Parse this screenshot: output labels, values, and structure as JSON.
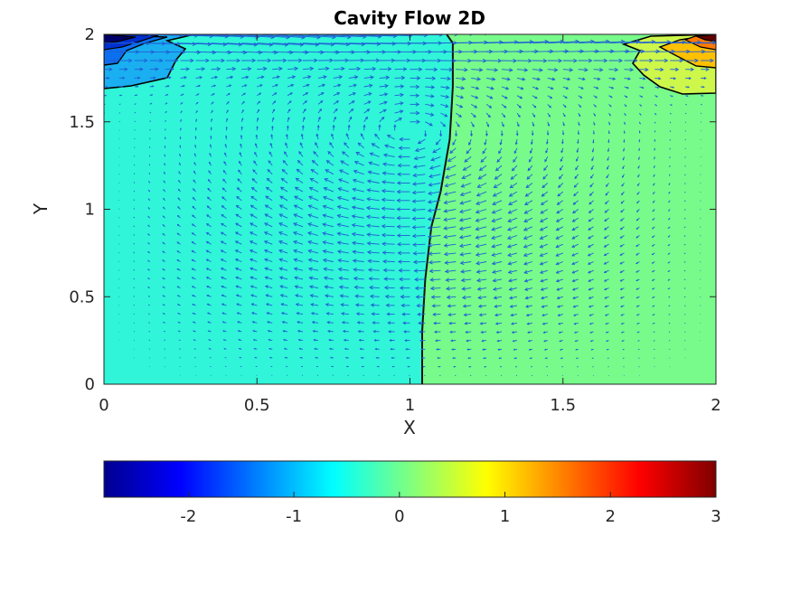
{
  "chart_data": {
    "type": "heatmap",
    "subtype": "filled contour with velocity quiver overlay",
    "title": "Cavity Flow 2D",
    "xlabel": "X",
    "ylabel": "Y",
    "xlim": [
      0,
      2
    ],
    "ylim": [
      0,
      2
    ],
    "x_ticks": [
      "0",
      "0.5",
      "1",
      "1.5",
      "2"
    ],
    "y_ticks": [
      "0",
      "0.5",
      "1",
      "1.5",
      "2"
    ],
    "x_tick_values": [
      0,
      0.5,
      1,
      1.5,
      2
    ],
    "y_tick_values": [
      0,
      0.5,
      1,
      1.5,
      2
    ],
    "grid": false,
    "colormap": "jet",
    "colorbar": {
      "placement": "bottom",
      "range": [
        -2.8,
        3.0
      ],
      "ticks": [
        "-2",
        "-1",
        "0",
        "1",
        "2",
        "3"
      ],
      "tick_values": [
        -2,
        -1,
        0,
        1,
        2,
        3
      ]
    },
    "pressure_regions": [
      {
        "region": "bulk left (x < ~1.05)",
        "value": -0.3,
        "color": "#30f5d8"
      },
      {
        "region": "bulk right (x > ~1.05)",
        "value": 0.3,
        "color": "#78fb8a"
      },
      {
        "region": "top-left corner",
        "value_range": [
          -2.8,
          -1.0
        ],
        "colors": [
          "#1aaff0",
          "#0060f0",
          "#00006a"
        ]
      },
      {
        "region": "top-right corner",
        "value_range": [
          1.0,
          3.0
        ],
        "colors": [
          "#cdf74a",
          "#ffc000",
          "#600000"
        ]
      }
    ],
    "zero_contour": [
      [
        1.04,
        0.0
      ],
      [
        1.04,
        0.3
      ],
      [
        1.05,
        0.6
      ],
      [
        1.07,
        0.9
      ],
      [
        1.1,
        1.1
      ],
      [
        1.13,
        1.4
      ],
      [
        1.14,
        1.7
      ],
      [
        1.14,
        1.95
      ],
      [
        1.12,
        2.0
      ]
    ],
    "velocity_field": {
      "description": "single clockwise recirculating vortex; strongest flow rightward along the lid (y = 2)",
      "lid_velocity": 1,
      "arrow_color": "#1f5fd6"
    }
  }
}
